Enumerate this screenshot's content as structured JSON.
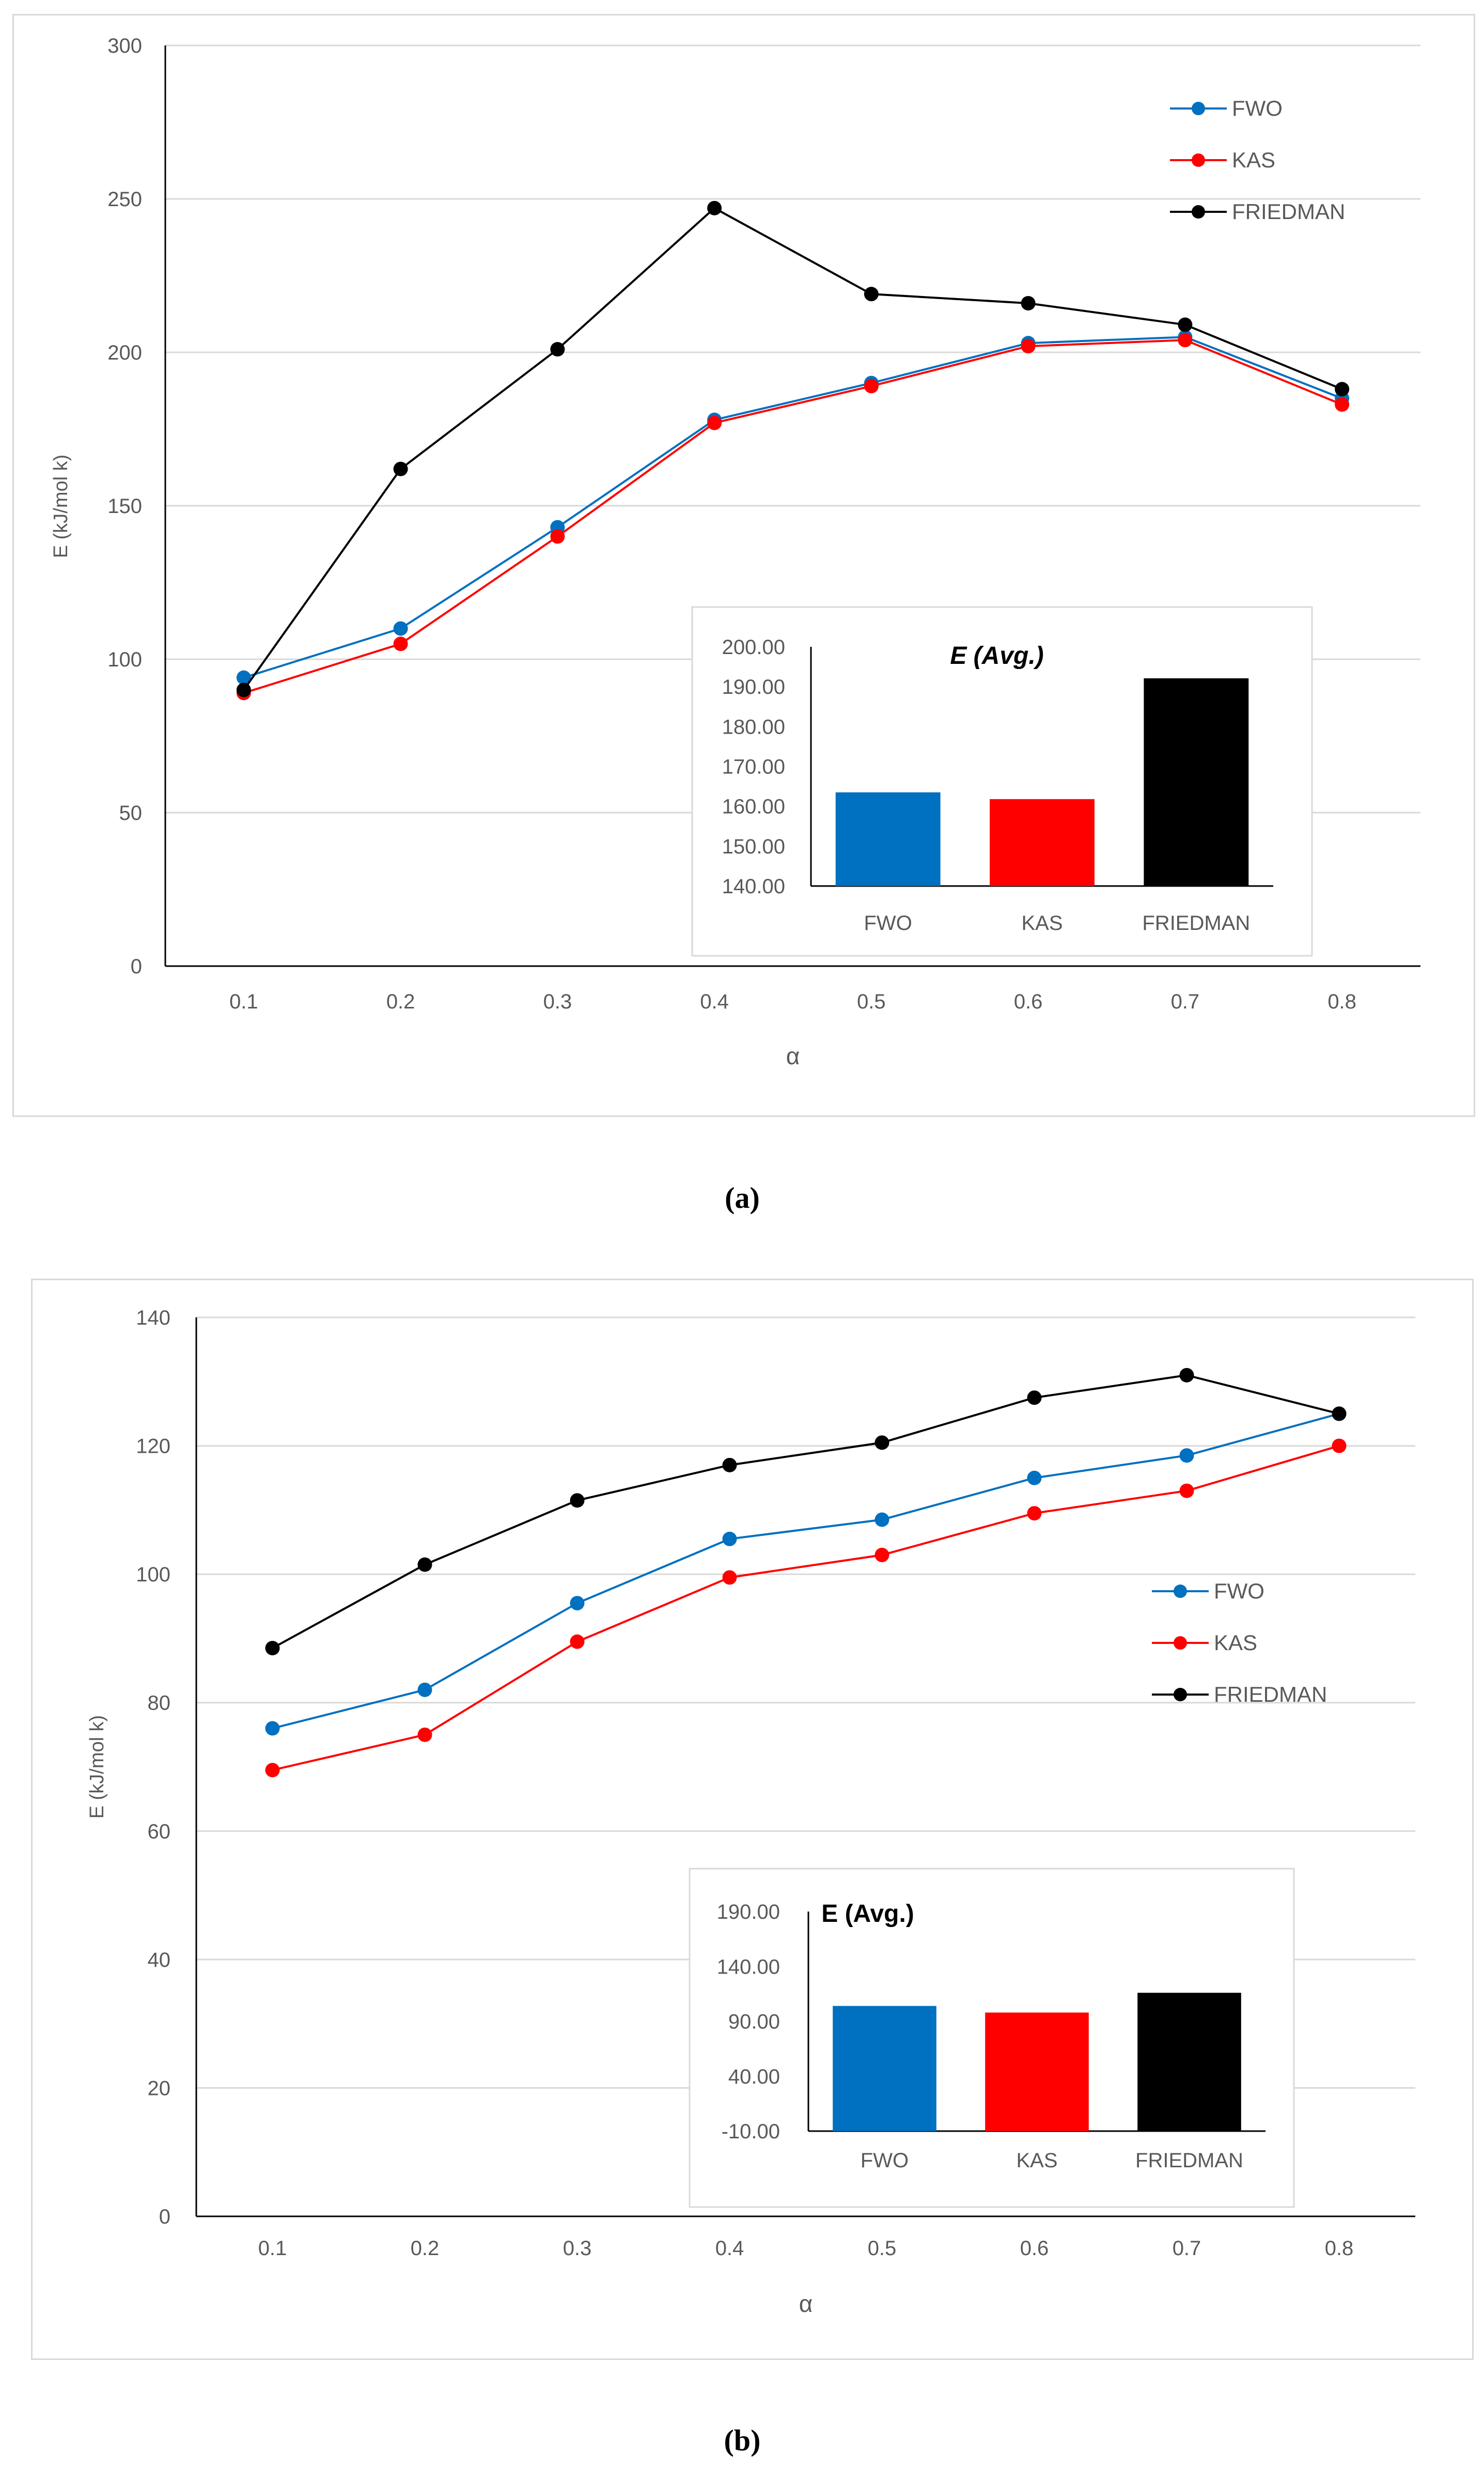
{
  "captions": {
    "a": "(a)",
    "b": "(b)"
  },
  "colors": {
    "FWO": "#0070c0",
    "KAS": "#ff0000",
    "FRIEDMAN": "#000000",
    "grid": "#d9d9d9",
    "axis": "#000000"
  },
  "chart_data": [
    {
      "type": "line",
      "panel": "a",
      "title": "",
      "xlabel": "α",
      "ylabel": "E (kJ/mol k)",
      "categories": [
        "0.1",
        "0.2",
        "0.3",
        "0.4",
        "0.5",
        "0.6",
        "0.7",
        "0.8"
      ],
      "ylim": [
        0,
        300
      ],
      "yticks": [
        "0",
        "50",
        "100",
        "150",
        "200",
        "250",
        "300"
      ],
      "grid": true,
      "legend_position": "top-right",
      "series": [
        {
          "name": "FWO",
          "values": [
            94,
            110,
            143,
            178,
            190,
            203,
            205,
            185
          ]
        },
        {
          "name": "KAS",
          "values": [
            89,
            105,
            140,
            177,
            189,
            202,
            204,
            183
          ]
        },
        {
          "name": "FRIEDMAN",
          "values": [
            90,
            162,
            201,
            247,
            219,
            216,
            209,
            188
          ]
        }
      ],
      "inset": {
        "type": "bar",
        "title": "E (Avg.)",
        "categories": [
          "FWO",
          "KAS",
          "FRIEDMAN"
        ],
        "values": [
          163.5,
          161.8,
          192.1
        ],
        "ylim": [
          140,
          200
        ],
        "yticks": [
          "140.00",
          "150.00",
          "160.00",
          "170.00",
          "180.00",
          "190.00",
          "200.00"
        ]
      }
    },
    {
      "type": "line",
      "panel": "b",
      "title": "",
      "xlabel": "α",
      "ylabel": "E (kJ/mol k)",
      "categories": [
        "0.1",
        "0.2",
        "0.3",
        "0.4",
        "0.5",
        "0.6",
        "0.7",
        "0.8"
      ],
      "ylim": [
        0,
        140
      ],
      "yticks": [
        "0",
        "20",
        "40",
        "60",
        "80",
        "100",
        "120",
        "140"
      ],
      "grid": true,
      "legend_position": "center-right",
      "series": [
        {
          "name": "FWO",
          "values": [
            76,
            82,
            95.5,
            105.5,
            108.5,
            115,
            118.5,
            125
          ]
        },
        {
          "name": "KAS",
          "values": [
            69.5,
            75,
            89.5,
            99.5,
            103,
            109.5,
            113,
            120
          ]
        },
        {
          "name": "FRIEDMAN",
          "values": [
            88.5,
            101.5,
            111.5,
            117,
            120.5,
            127.5,
            131,
            125
          ]
        }
      ],
      "inset": {
        "type": "bar",
        "title": "E (Avg.)",
        "categories": [
          "FWO",
          "KAS",
          "FRIEDMAN"
        ],
        "values": [
          104,
          98,
          116
        ],
        "ylim": [
          -10,
          190
        ],
        "yticks": [
          "-10.00",
          "40.00",
          "90.00",
          "140.00",
          "190.00"
        ]
      }
    }
  ]
}
